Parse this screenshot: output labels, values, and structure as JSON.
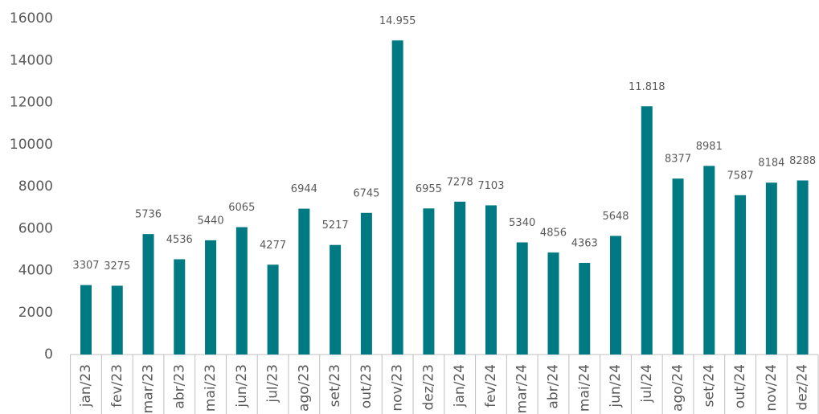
{
  "chart_data": {
    "type": "bar",
    "categories": [
      "jan/23",
      "fev/23",
      "mar/23",
      "abr/23",
      "mai/23",
      "jun/23",
      "jul/23",
      "ago/23",
      "set/23",
      "out/23",
      "nov/23",
      "dez/23",
      "jan/24",
      "fev/24",
      "mar/24",
      "abr/24",
      "mai/24",
      "jun/24",
      "jul/24",
      "ago/24",
      "set/24",
      "out/24",
      "nov/24",
      "dez/24"
    ],
    "values": [
      3307,
      3275,
      5736,
      4536,
      5440,
      6065,
      4277,
      6944,
      5217,
      6745,
      14955,
      6955,
      7278,
      7103,
      5340,
      4856,
      4363,
      5648,
      11818,
      8377,
      8981,
      7587,
      8184,
      8288
    ],
    "value_labels": [
      "3307",
      "3275",
      "5736",
      "4536",
      "5440",
      "6065",
      "4277",
      "6944",
      "5217",
      "6745",
      "14.955",
      "6955",
      "7278",
      "7103",
      "5340",
      "4856",
      "4363",
      "5648",
      "11.818",
      "8377",
      "8981",
      "7587",
      "8184",
      "8288"
    ],
    "color": "#007a82",
    "ylim": [
      0,
      16000
    ],
    "yticks": [
      0,
      2000,
      4000,
      6000,
      8000,
      10000,
      12000,
      14000,
      16000
    ],
    "grid": false
  }
}
